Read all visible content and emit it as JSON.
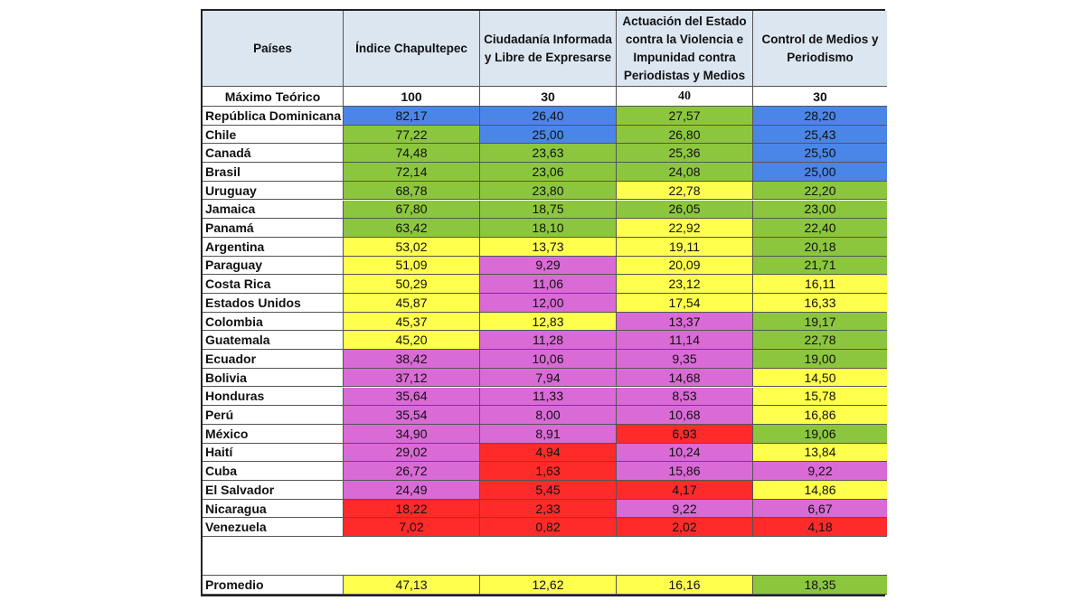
{
  "colors": {
    "header": "#dce6f1",
    "blue": "#4a86e8",
    "green": "#8cc63f",
    "yellow": "#ffff4d",
    "magenta": "#d96ad6",
    "red": "#ff2a2a"
  },
  "table": {
    "headers": [
      "Países",
      "Índice Chapultepec",
      "Ciudadanía Informada y Libre de Expresarse",
      "Actuación del Estado contra la Violencia e Impunidad contra Periodistas y Medios",
      "Control de Medios y Periodismo"
    ],
    "max_row": {
      "label": "Máximo Teórico",
      "values": [
        "100",
        "30",
        "40",
        "30"
      ]
    },
    "rows": [
      {
        "country": "República Dominicana",
        "values": [
          "82,17",
          "26,40",
          "27,57",
          "28,20"
        ],
        "colors": [
          "blue",
          "blue",
          "green",
          "blue"
        ]
      },
      {
        "country": "Chile",
        "values": [
          "77,22",
          "25,00",
          "26,80",
          "25,43"
        ],
        "colors": [
          "green",
          "blue",
          "green",
          "blue"
        ]
      },
      {
        "country": "Canadá",
        "values": [
          "74,48",
          "23,63",
          "25,36",
          "25,50"
        ],
        "colors": [
          "green",
          "green",
          "green",
          "blue"
        ]
      },
      {
        "country": "Brasil",
        "values": [
          "72,14",
          "23,06",
          "24,08",
          "25,00"
        ],
        "colors": [
          "green",
          "green",
          "green",
          "blue"
        ]
      },
      {
        "country": "Uruguay",
        "values": [
          "68,78",
          "23,80",
          "22,78",
          "22,20"
        ],
        "colors": [
          "green",
          "green",
          "yellow",
          "green"
        ]
      },
      {
        "country": "Jamaica",
        "values": [
          "67,80",
          "18,75",
          "26,05",
          "23,00"
        ],
        "colors": [
          "green",
          "green",
          "green",
          "green"
        ]
      },
      {
        "country": "Panamá",
        "values": [
          "63,42",
          "18,10",
          "22,92",
          "22,40"
        ],
        "colors": [
          "green",
          "green",
          "yellow",
          "green"
        ]
      },
      {
        "country": "Argentina",
        "values": [
          "53,02",
          "13,73",
          "19,11",
          "20,18"
        ],
        "colors": [
          "yellow",
          "yellow",
          "yellow",
          "green"
        ]
      },
      {
        "country": "Paraguay",
        "values": [
          "51,09",
          "9,29",
          "20,09",
          "21,71"
        ],
        "colors": [
          "yellow",
          "magenta",
          "yellow",
          "green"
        ]
      },
      {
        "country": "Costa Rica",
        "values": [
          "50,29",
          "11,06",
          "23,12",
          "16,11"
        ],
        "colors": [
          "yellow",
          "magenta",
          "yellow",
          "yellow"
        ]
      },
      {
        "country": "Estados Unidos",
        "values": [
          "45,87",
          "12,00",
          "17,54",
          "16,33"
        ],
        "colors": [
          "yellow",
          "magenta",
          "yellow",
          "yellow"
        ]
      },
      {
        "country": "Colombia",
        "values": [
          "45,37",
          "12,83",
          "13,37",
          "19,17"
        ],
        "colors": [
          "yellow",
          "yellow",
          "magenta",
          "green"
        ]
      },
      {
        "country": "Guatemala",
        "values": [
          "45,20",
          "11,28",
          "11,14",
          "22,78"
        ],
        "colors": [
          "yellow",
          "magenta",
          "magenta",
          "green"
        ]
      },
      {
        "country": "Ecuador",
        "values": [
          "38,42",
          "10,06",
          "9,35",
          "19,00"
        ],
        "colors": [
          "magenta",
          "magenta",
          "magenta",
          "green"
        ]
      },
      {
        "country": "Bolivia",
        "values": [
          "37,12",
          "7,94",
          "14,68",
          "14,50"
        ],
        "colors": [
          "magenta",
          "magenta",
          "magenta",
          "yellow"
        ]
      },
      {
        "country": "Honduras",
        "values": [
          "35,64",
          "11,33",
          "8,53",
          "15,78"
        ],
        "colors": [
          "magenta",
          "magenta",
          "magenta",
          "yellow"
        ]
      },
      {
        "country": "Perú",
        "values": [
          "35,54",
          "8,00",
          "10,68",
          "16,86"
        ],
        "colors": [
          "magenta",
          "magenta",
          "magenta",
          "yellow"
        ]
      },
      {
        "country": "México",
        "values": [
          "34,90",
          "8,91",
          "6,93",
          "19,06"
        ],
        "colors": [
          "magenta",
          "magenta",
          "red",
          "green"
        ]
      },
      {
        "country": "Haití",
        "values": [
          "29,02",
          "4,94",
          "10,24",
          "13,84"
        ],
        "colors": [
          "magenta",
          "red",
          "magenta",
          "yellow"
        ]
      },
      {
        "country": "Cuba",
        "values": [
          "26,72",
          "1,63",
          "15,86",
          "9,22"
        ],
        "colors": [
          "magenta",
          "red",
          "magenta",
          "magenta"
        ]
      },
      {
        "country": "El Salvador",
        "values": [
          "24,49",
          "5,45",
          "4,17",
          "14,86"
        ],
        "colors": [
          "magenta",
          "red",
          "red",
          "yellow"
        ]
      },
      {
        "country": "Nicaragua",
        "values": [
          "18,22",
          "2,33",
          "9,22",
          "6,67"
        ],
        "colors": [
          "red",
          "red",
          "magenta",
          "magenta"
        ]
      },
      {
        "country": "Venezuela",
        "values": [
          "7,02",
          "0,82",
          "2,02",
          "4,18"
        ],
        "colors": [
          "red",
          "red",
          "red",
          "red"
        ]
      }
    ],
    "average": {
      "label": "Promedio",
      "values": [
        "47,13",
        "12,62",
        "16,16",
        "18,35"
      ],
      "colors": [
        "yellow",
        "yellow",
        "yellow",
        "green"
      ]
    }
  }
}
